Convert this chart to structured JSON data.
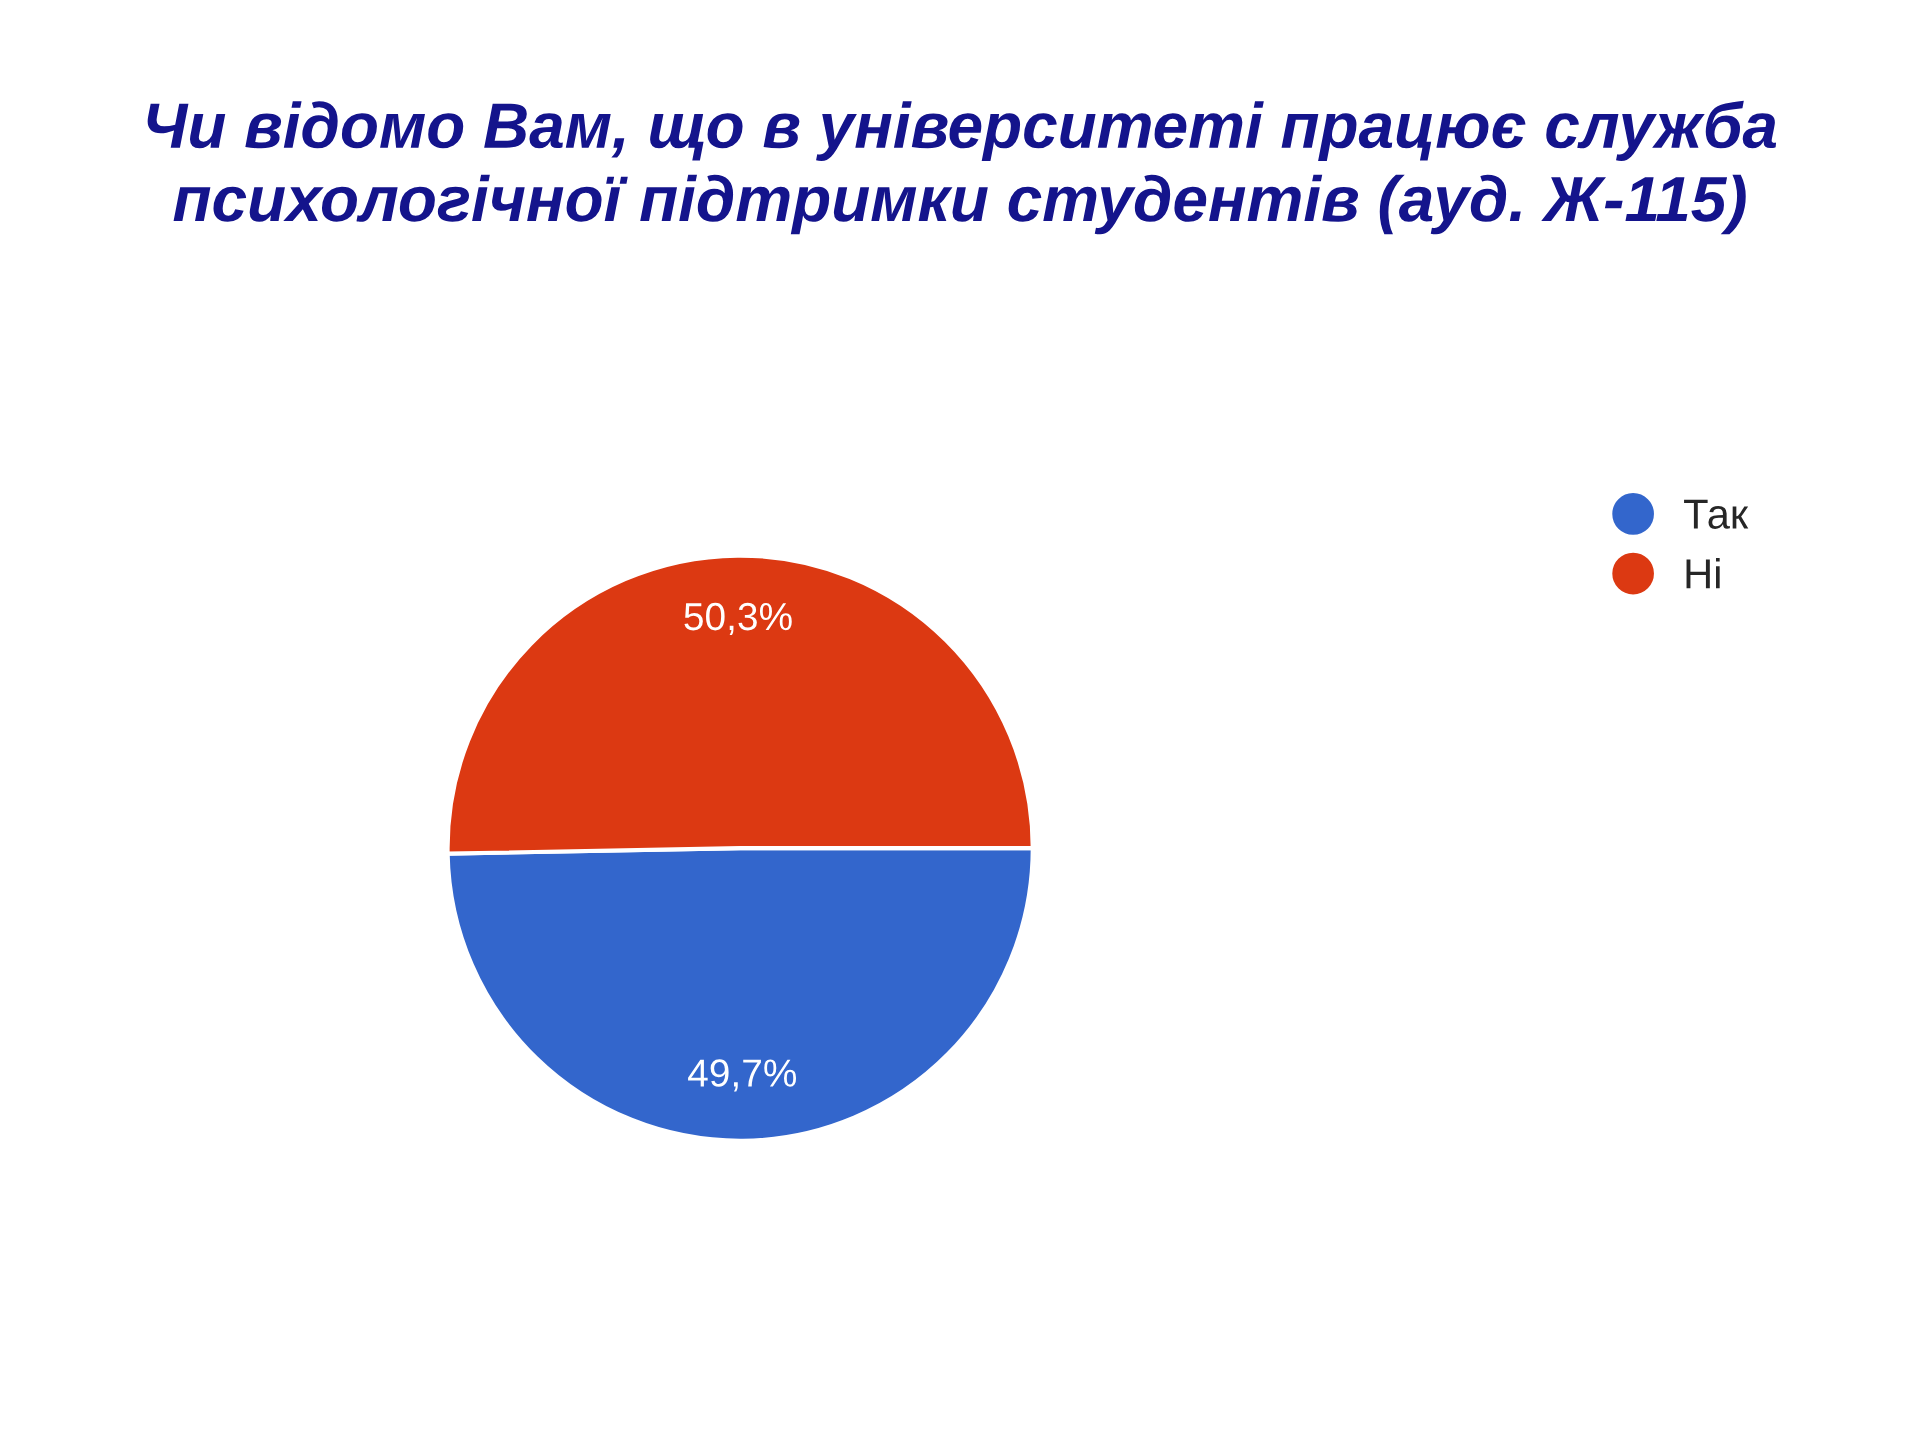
{
  "chart_data": {
    "type": "pie",
    "title": "Чи відомо Вам, що в університеті працює служба психологічної підтримки студентів (ауд. Ж-115)",
    "categories": [
      "Так",
      "Ні"
    ],
    "values": [
      49.7,
      50.3
    ],
    "value_labels": [
      "49,7%",
      "50,3%"
    ],
    "colors": [
      "#3366cc",
      "#dc3912"
    ],
    "legend": "top right"
  }
}
